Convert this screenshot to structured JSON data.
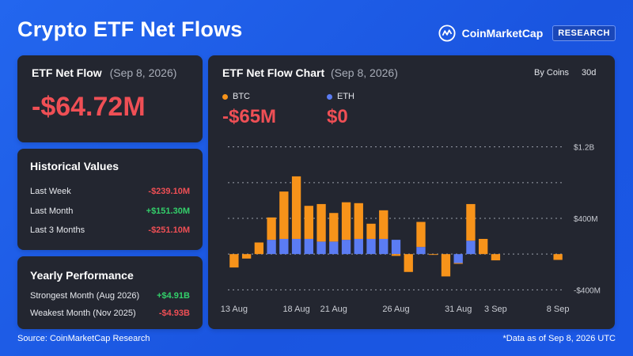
{
  "header": {
    "title": "Crypto ETF Net Flows",
    "brand_name": "CoinMarketCap",
    "brand_badge": "RESEARCH"
  },
  "net_flow_card": {
    "title": "ETF Net Flow",
    "date": "(Sep 8, 2026)",
    "value": "-$64.72M"
  },
  "historical": {
    "title": "Historical Values",
    "items": [
      {
        "label": "Last Week",
        "value": "-$239.10M"
      },
      {
        "label": "Last Month",
        "value": "+$151.30M"
      },
      {
        "label": "Last 3 Months",
        "value": "-$251.10M"
      }
    ]
  },
  "yearly": {
    "title": "Yearly Performance",
    "items": [
      {
        "label": "Strongest Month (Aug 2026)",
        "value": "+$4.91B"
      },
      {
        "label": "Weakest Month (Nov 2025)",
        "value": "-$4.93B"
      }
    ]
  },
  "chart_card": {
    "title": "ETF Net Flow Chart",
    "date": "(Sep 8, 2026)",
    "controls": {
      "group": "By Coins",
      "range": "30d"
    },
    "legend": [
      {
        "name": "BTC",
        "value": "-$65M",
        "color": "#f7931a"
      },
      {
        "name": "ETH",
        "value": "$0",
        "color": "#5b7cf3"
      }
    ]
  },
  "chart_data": {
    "type": "bar",
    "stacked": true,
    "x_tick_labels": [
      "13 Aug",
      "18 Aug",
      "21 Aug",
      "26 Aug",
      "31 Aug",
      "3 Sep",
      "8 Sep"
    ],
    "y_tick_labels": [
      "$1.2B",
      "$400M",
      "-$400M"
    ],
    "ylim": [
      -450,
      1250
    ],
    "grid": true,
    "categories": [
      "Aug 13",
      "Aug 14",
      "Aug 15",
      "Aug 16",
      "Aug 17",
      "Aug 18",
      "Aug 19",
      "Aug 20",
      "Aug 21",
      "Aug 22",
      "Aug 23",
      "Aug 24",
      "Aug 25",
      "Aug 26",
      "Aug 27",
      "Aug 28",
      "Aug 29",
      "Aug 30",
      "Aug 31",
      "Sep 1",
      "Sep 2",
      "Sep 3",
      "Sep 4",
      "Sep 5",
      "Sep 6",
      "Sep 7",
      "Sep 8"
    ],
    "series": [
      {
        "name": "BTC",
        "color": "#f7931a",
        "values": [
          -150,
          -50,
          130,
          250,
          530,
          700,
          370,
          420,
          320,
          420,
          400,
          170,
          320,
          -20,
          -200,
          280,
          -5,
          -250,
          -5,
          410,
          170,
          -70,
          null,
          null,
          null,
          null,
          -65
        ]
      },
      {
        "name": "ETH",
        "color": "#5b7cf3",
        "values": [
          0,
          0,
          0,
          160,
          170,
          170,
          170,
          140,
          140,
          160,
          170,
          170,
          170,
          160,
          0,
          80,
          0,
          0,
          -100,
          150,
          0,
          0,
          null,
          null,
          null,
          null,
          0
        ]
      }
    ]
  },
  "footer": {
    "source": "Source: CoinMarketCap Research",
    "note": "*Data as of Sep 8, 2026 UTC"
  }
}
